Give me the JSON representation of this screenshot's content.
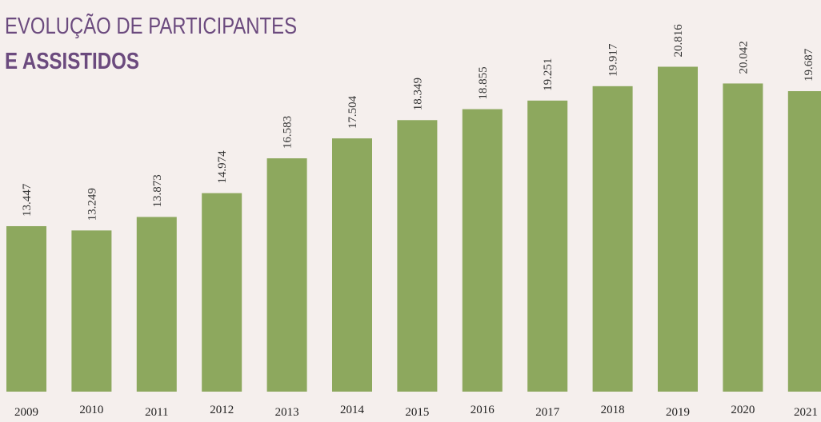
{
  "chart_data": {
    "type": "bar",
    "title": "EVOLUÇÃO DE PARTICIPANTES",
    "subtitle": "E ASSISTIDOS",
    "categories": [
      "2009",
      "2010",
      "2011",
      "2012",
      "2013",
      "2014",
      "2015",
      "2016",
      "2017",
      "2018",
      "2019",
      "2020",
      "2021"
    ],
    "values": [
      13447,
      13249,
      13873,
      14974,
      16583,
      17504,
      18349,
      18855,
      19251,
      19917,
      20816,
      20042,
      19687
    ],
    "value_labels": [
      "13.447",
      "13.249",
      "13.873",
      "14.974",
      "16.583",
      "17.504",
      "18.349",
      "18.855",
      "19.251",
      "19.917",
      "20.816",
      "20.042",
      "19.687"
    ],
    "color": "#8da85e",
    "ylim": [
      5800,
      23900
    ]
  }
}
